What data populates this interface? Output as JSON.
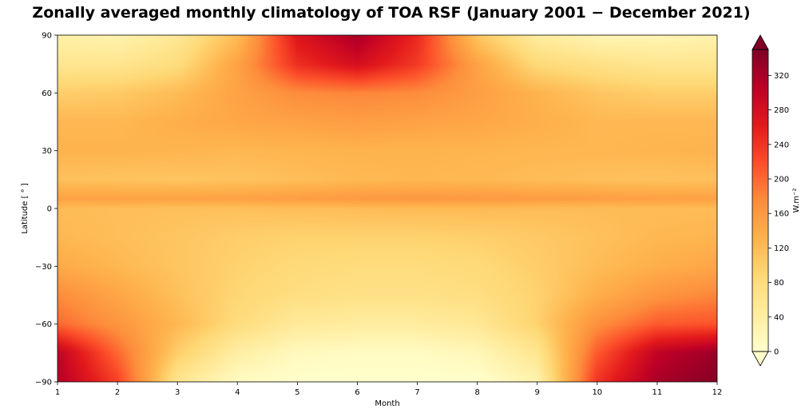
{
  "chart_data": {
    "type": "heatmap",
    "title": "Zonally averaged monthly climatology of TOA RSF (January 2001  −  December 2021)",
    "xlabel": "Month",
    "ylabel": "Latitude [ ° ]",
    "colorbar_label": "W.m⁻²",
    "colormap": "YlOrRd",
    "colorbar_extend": "both",
    "x_ticks": [
      "1",
      "2",
      "3",
      "4",
      "5",
      "6",
      "7",
      "8",
      "9",
      "10",
      "11",
      "12"
    ],
    "y_ticks": [
      "90",
      "60",
      "30",
      "0",
      "−30",
      "−60",
      "−90"
    ],
    "colorbar_ticks": [
      "0",
      "40",
      "80",
      "120",
      "160",
      "200",
      "240",
      "280",
      "320"
    ],
    "xlim": [
      1,
      12
    ],
    "ylim": [
      -90,
      90
    ],
    "clim": [
      0,
      350
    ],
    "months": [
      1,
      2,
      3,
      4,
      5,
      6,
      7,
      8,
      9,
      10,
      11,
      12
    ],
    "latitudes": [
      90,
      75,
      60,
      45,
      30,
      15,
      5,
      0,
      -15,
      -30,
      -45,
      -60,
      -75,
      -90
    ],
    "values": [
      [
        35,
        30,
        55,
        120,
        270,
        320,
        250,
        110,
        45,
        25,
        25,
        30
      ],
      [
        60,
        60,
        80,
        150,
        245,
        280,
        235,
        150,
        85,
        70,
        60,
        60
      ],
      [
        100,
        105,
        120,
        150,
        175,
        180,
        175,
        155,
        130,
        110,
        100,
        100
      ],
      [
        125,
        125,
        135,
        145,
        150,
        155,
        150,
        145,
        135,
        125,
        125,
        125
      ],
      [
        130,
        130,
        128,
        125,
        128,
        130,
        130,
        128,
        126,
        126,
        128,
        130
      ],
      [
        115,
        112,
        110,
        112,
        118,
        124,
        126,
        124,
        120,
        116,
        114,
        115
      ],
      [
        150,
        150,
        150,
        152,
        155,
        160,
        162,
        160,
        158,
        155,
        152,
        150
      ],
      [
        120,
        118,
        116,
        115,
        118,
        120,
        122,
        122,
        120,
        120,
        120,
        120
      ],
      [
        125,
        118,
        110,
        100,
        95,
        95,
        95,
        98,
        105,
        115,
        125,
        128
      ],
      [
        140,
        125,
        110,
        95,
        85,
        80,
        80,
        85,
        100,
        120,
        135,
        145
      ],
      [
        175,
        145,
        115,
        90,
        75,
        70,
        70,
        75,
        95,
        135,
        165,
        180
      ],
      [
        200,
        165,
        125,
        80,
        50,
        45,
        45,
        55,
        95,
        170,
        210,
        215
      ],
      [
        300,
        200,
        100,
        40,
        15,
        10,
        10,
        20,
        60,
        210,
        300,
        330
      ],
      [
        310,
        230,
        60,
        10,
        0,
        0,
        0,
        0,
        30,
        240,
        320,
        345
      ]
    ]
  }
}
